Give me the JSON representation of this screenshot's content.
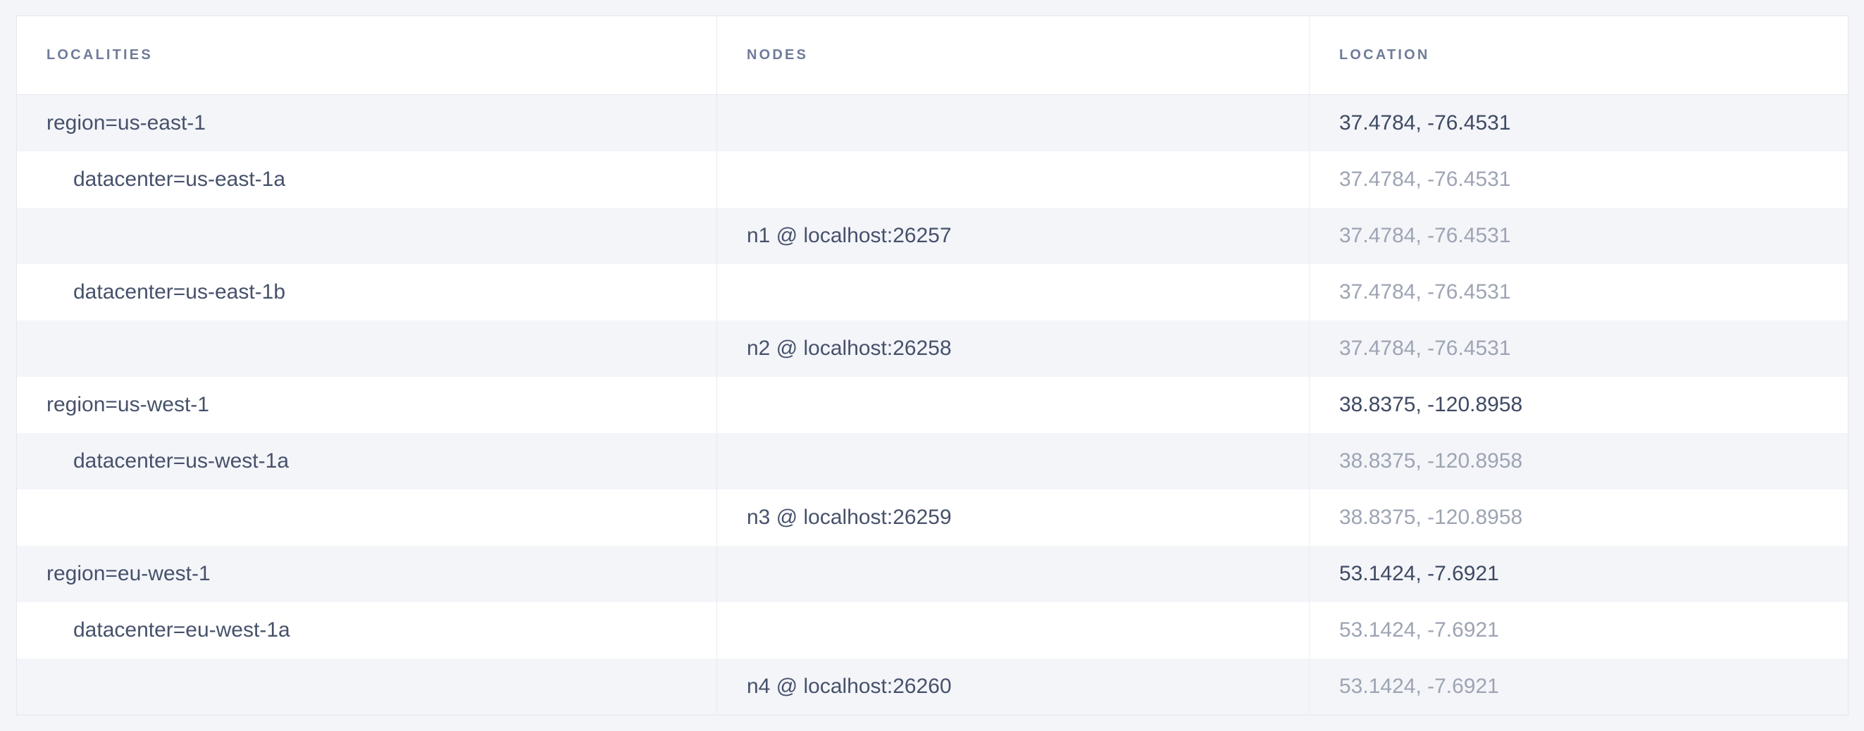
{
  "page": {
    "background_color": "#f4f5f9",
    "stripe_color": "#f4f5f9",
    "table_background_color": "#ffffff",
    "border_color": "#e3e6ec",
    "header_text_color": "#6f7b99",
    "cell_text_color": "#46516b",
    "location_dark_color": "#3e4a63",
    "location_muted_color": "#9da4b3"
  },
  "table": {
    "columns": [
      {
        "key": "localities",
        "label": "LOCALITIES"
      },
      {
        "key": "nodes",
        "label": "NODES"
      },
      {
        "key": "location",
        "label": "LOCATION"
      }
    ],
    "rows": [
      {
        "locality": "region=us-east-1",
        "indent": 0,
        "node": "",
        "location": "37.4784, -76.4531",
        "location_emphasis": "dark",
        "stripe": true
      },
      {
        "locality": "datacenter=us-east-1a",
        "indent": 1,
        "node": "",
        "location": "37.4784, -76.4531",
        "location_emphasis": "muted",
        "stripe": false
      },
      {
        "locality": "",
        "indent": 0,
        "node": "n1 @ localhost:26257",
        "location": "37.4784, -76.4531",
        "location_emphasis": "muted",
        "stripe": true
      },
      {
        "locality": "datacenter=us-east-1b",
        "indent": 1,
        "node": "",
        "location": "37.4784, -76.4531",
        "location_emphasis": "muted",
        "stripe": false
      },
      {
        "locality": "",
        "indent": 0,
        "node": "n2 @ localhost:26258",
        "location": "37.4784, -76.4531",
        "location_emphasis": "muted",
        "stripe": true
      },
      {
        "locality": "region=us-west-1",
        "indent": 0,
        "node": "",
        "location": "38.8375, -120.8958",
        "location_emphasis": "dark",
        "stripe": false
      },
      {
        "locality": "datacenter=us-west-1a",
        "indent": 1,
        "node": "",
        "location": "38.8375, -120.8958",
        "location_emphasis": "muted",
        "stripe": true
      },
      {
        "locality": "",
        "indent": 0,
        "node": "n3 @ localhost:26259",
        "location": "38.8375, -120.8958",
        "location_emphasis": "muted",
        "stripe": false
      },
      {
        "locality": "region=eu-west-1",
        "indent": 0,
        "node": "",
        "location": "53.1424, -7.6921",
        "location_emphasis": "dark",
        "stripe": true
      },
      {
        "locality": "datacenter=eu-west-1a",
        "indent": 1,
        "node": "",
        "location": "53.1424, -7.6921",
        "location_emphasis": "muted",
        "stripe": false
      },
      {
        "locality": "",
        "indent": 0,
        "node": "n4 @ localhost:26260",
        "location": "53.1424, -7.6921",
        "location_emphasis": "muted",
        "stripe": true
      }
    ]
  }
}
